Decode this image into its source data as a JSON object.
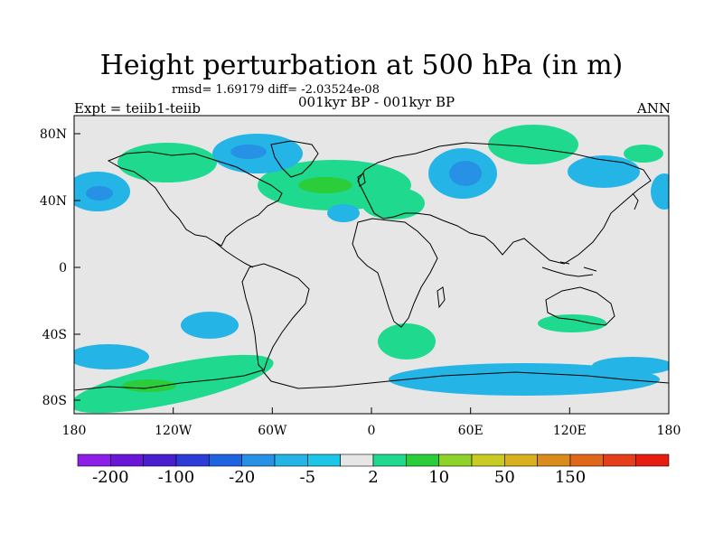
{
  "map": {
    "title": "Height perturbation at 500 hPa (in m)",
    "stats": "rmsd= 1.69179 diff= -2.03524e-08",
    "expt": "Expt = teiib1-teiib",
    "period": "001kyr BP - 001kyr BP",
    "season": "ANN",
    "lat_labels": [
      "80N",
      "40N",
      "0",
      "40S",
      "80S"
    ],
    "lon_labels": [
      "180",
      "120W",
      "60W",
      "0",
      "60E",
      "120E",
      "180"
    ],
    "background_color": "#e6e6e6",
    "land_outline_color": "#000000"
  },
  "colorbar": {
    "colors": [
      "#8d20e8",
      "#6a16d6",
      "#4a1fcf",
      "#2d3bd9",
      "#1e63e0",
      "#2791e6",
      "#24b4e6",
      "#1cc6e6",
      "#e6e6e6",
      "#1fd98e",
      "#2bcd3a",
      "#8fd22a",
      "#c8cc22",
      "#d9b01e",
      "#d98c1a",
      "#e0661a",
      "#e63e1a",
      "#e61e12"
    ],
    "labels": [
      "-200",
      "-100",
      "-20",
      "-5",
      "2",
      "10",
      "50",
      "150"
    ]
  },
  "anomalies": [
    {
      "name": "north-atlantic-europe-positive",
      "color": "#1fd98e"
    },
    {
      "name": "greenland-negative",
      "color": "#24b4e6"
    },
    {
      "name": "siberia-negative",
      "color": "#24b4e6"
    },
    {
      "name": "southern-ocean-pacific-positive",
      "color": "#1fd98e"
    },
    {
      "name": "southern-ocean-indian-negative",
      "color": "#24b4e6"
    }
  ]
}
